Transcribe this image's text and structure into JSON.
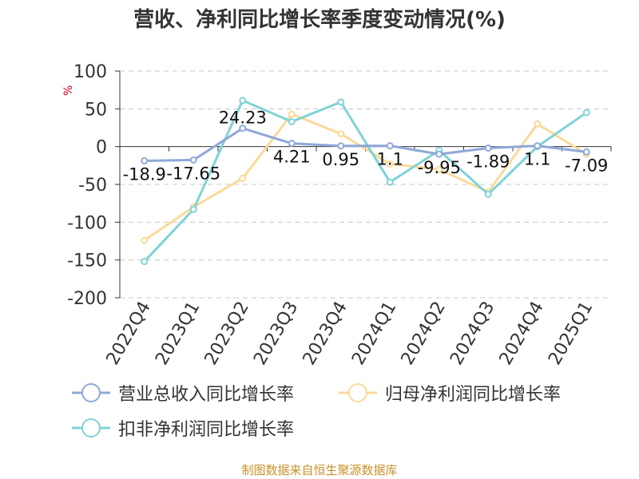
{
  "title": "营收、净利同比增长率季度变动情况(%)",
  "y_unit_label": "%",
  "source": "制图数据来自恒生聚源数据库",
  "chart_data": {
    "type": "line",
    "title": "营收、净利同比增长率季度变动情况(%)",
    "xlabel": "",
    "ylabel": "%",
    "ylim": [
      -200,
      100
    ],
    "yticks": [
      100,
      50,
      0,
      -50,
      -100,
      -150,
      -200
    ],
    "grid": true,
    "legend": "bottom",
    "categories": [
      "2022Q4",
      "2023Q1",
      "2023Q2",
      "2023Q3",
      "2023Q4",
      "2024Q1",
      "2024Q2",
      "2024Q3",
      "2024Q4",
      "2025Q1"
    ],
    "series": [
      {
        "name": "营业总收入同比增长率",
        "color": "#8fa8d8",
        "values": [
          -18.9,
          -17.65,
          24.23,
          4.21,
          0.95,
          1.1,
          -9.95,
          -1.89,
          1.1,
          -7.09
        ],
        "labels": [
          "-18.9",
          "-17.65",
          "24.23",
          "4.21",
          "0.95",
          "1.1",
          "-9.95",
          "-1.89",
          "1.1",
          "-7.09"
        ]
      },
      {
        "name": "归母净利润同比增长率",
        "color": "#fbd99a",
        "values": [
          -124,
          -80,
          -42,
          43,
          17,
          -23,
          -30,
          -60,
          30,
          -10
        ]
      },
      {
        "name": "扣非净利润同比增长率",
        "color": "#7fd3d6",
        "values": [
          -152,
          -83,
          61,
          33,
          59,
          -47,
          -5,
          -63,
          0,
          45
        ]
      }
    ]
  }
}
